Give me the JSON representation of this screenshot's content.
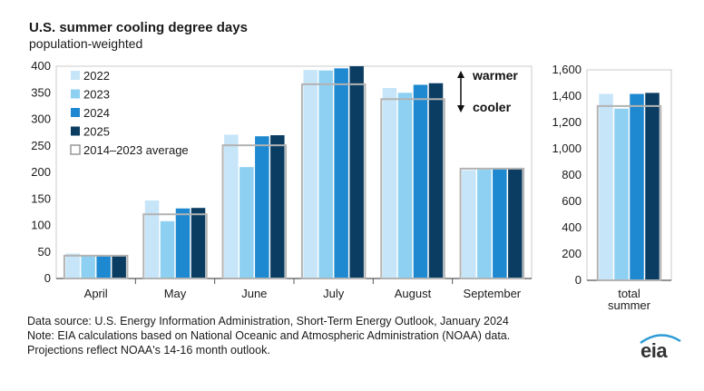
{
  "title": "U.S. summer cooling degree days",
  "subtitle": "population-weighted",
  "chart_data": [
    {
      "type": "bar",
      "categories": [
        "April",
        "May",
        "June",
        "July",
        "August",
        "September"
      ],
      "series": [
        {
          "name": "2022",
          "values": [
            47,
            147,
            271,
            393,
            359,
            204
          ]
        },
        {
          "name": "2023",
          "values": [
            43,
            108,
            210,
            392,
            350,
            205
          ]
        },
        {
          "name": "2024",
          "values": [
            43,
            132,
            268,
            396,
            365,
            207
          ]
        },
        {
          "name": "2025",
          "values": [
            43,
            133,
            270,
            400,
            368,
            207
          ]
        }
      ],
      "average": {
        "name": "2014–2023 average",
        "values": [
          43,
          121,
          251,
          366,
          338,
          207
        ]
      },
      "ylim": [
        0,
        400
      ],
      "yticks": [
        "0",
        "50",
        "100",
        "150",
        "200",
        "250",
        "300",
        "350",
        "400"
      ],
      "legend_placement": "top-left",
      "annotations": {
        "warmer": "warmer",
        "cooler": "cooler"
      }
    },
    {
      "type": "bar",
      "categories": [
        "total summer"
      ],
      "series": [
        {
          "name": "2022",
          "values": [
            1417
          ]
        },
        {
          "name": "2023",
          "values": [
            1305
          ]
        },
        {
          "name": "2024",
          "values": [
            1417
          ]
        },
        {
          "name": "2025",
          "values": [
            1425
          ]
        }
      ],
      "average": {
        "name": "2014–2023 average",
        "values": [
          1325
        ]
      },
      "ylim": [
        0,
        1600
      ],
      "yticks": [
        "0",
        "200",
        "400",
        "600",
        "800",
        "1,000",
        "1,200",
        "1,400",
        "1,600"
      ],
      "xlabel_lines": [
        "total",
        "summer"
      ]
    }
  ],
  "colors": {
    "2022": "#c6e5f8",
    "2023": "#8dd0f2",
    "2024": "#1e88d0",
    "2025": "#0b3d62",
    "average": "#b3b3b3",
    "axis": "#555555"
  },
  "footer": {
    "source": "Data source: U.S. Energy Information Administration, Short-Term Energy Outlook, January 2024",
    "note": "Note: EIA calculations based on National Oceanic and Atmospheric Administration (NOAA) data.",
    "projection": "Projections reflect NOAA's 14-16 month outlook."
  },
  "logo": {
    "text": "eia"
  }
}
